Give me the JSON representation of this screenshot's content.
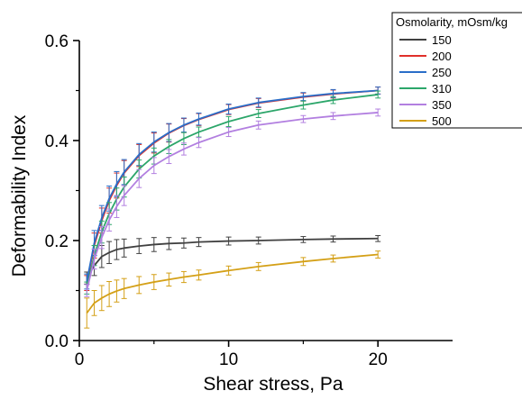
{
  "chart_data": {
    "type": "line",
    "xlabel": "Shear stress, Pa",
    "ylabel": "Deformability Index",
    "xlim": [
      0,
      25
    ],
    "ylim": [
      0,
      0.6
    ],
    "x_ticks": [
      0,
      10,
      20
    ],
    "x_tick_labels": [
      "0",
      "10",
      "20"
    ],
    "y_ticks": [
      0,
      0.2,
      0.4,
      0.6
    ],
    "y_tick_labels": [
      "0.0",
      "0.2",
      "0.4",
      "0.6"
    ],
    "legend_title": "Osmolarity, mOsm/kg",
    "legend_position": "top-right",
    "x": [
      0.5,
      1,
      1.5,
      2,
      2.5,
      3,
      4,
      5,
      6,
      7,
      8,
      10,
      12,
      15,
      17,
      20
    ],
    "series": [
      {
        "name": "150",
        "color": "#404040",
        "values": [
          0.125,
          0.15,
          0.168,
          0.176,
          0.182,
          0.185,
          0.189,
          0.192,
          0.194,
          0.195,
          0.197,
          0.199,
          0.2,
          0.202,
          0.203,
          0.204
        ],
        "errors": [
          0.012,
          0.02,
          0.022,
          0.022,
          0.02,
          0.018,
          0.015,
          0.014,
          0.012,
          0.01,
          0.009,
          0.008,
          0.007,
          0.006,
          0.006,
          0.006
        ]
      },
      {
        "name": "200",
        "color": "#e0302a",
        "values": [
          0.115,
          0.19,
          0.24,
          0.28,
          0.31,
          0.335,
          0.37,
          0.395,
          0.415,
          0.43,
          0.442,
          0.462,
          0.475,
          0.487,
          0.493,
          0.5
        ],
        "errors": [
          0.015,
          0.025,
          0.025,
          0.025,
          0.025,
          0.025,
          0.022,
          0.02,
          0.018,
          0.014,
          0.012,
          0.01,
          0.009,
          0.008,
          0.008,
          0.007
        ]
      },
      {
        "name": "250",
        "color": "#2a6ec8",
        "values": [
          0.118,
          0.195,
          0.245,
          0.284,
          0.313,
          0.337,
          0.372,
          0.397,
          0.416,
          0.431,
          0.443,
          0.463,
          0.476,
          0.488,
          0.494,
          0.5
        ],
        "errors": [
          0.015,
          0.025,
          0.025,
          0.025,
          0.025,
          0.025,
          0.022,
          0.02,
          0.018,
          0.014,
          0.012,
          0.01,
          0.009,
          0.008,
          0.008,
          0.007
        ]
      },
      {
        "name": "310",
        "color": "#2ca66a",
        "values": [
          0.105,
          0.17,
          0.217,
          0.254,
          0.283,
          0.307,
          0.343,
          0.369,
          0.388,
          0.404,
          0.417,
          0.438,
          0.454,
          0.471,
          0.481,
          0.492
        ],
        "errors": [
          0.012,
          0.02,
          0.022,
          0.022,
          0.022,
          0.02,
          0.018,
          0.016,
          0.014,
          0.012,
          0.01,
          0.01,
          0.008,
          0.008,
          0.007,
          0.007
        ]
      },
      {
        "name": "350",
        "color": "#b27fe0",
        "values": [
          0.1,
          0.163,
          0.206,
          0.241,
          0.268,
          0.29,
          0.324,
          0.35,
          0.368,
          0.383,
          0.396,
          0.417,
          0.431,
          0.443,
          0.449,
          0.456
        ],
        "errors": [
          0.012,
          0.02,
          0.022,
          0.022,
          0.022,
          0.02,
          0.018,
          0.016,
          0.014,
          0.012,
          0.01,
          0.009,
          0.008,
          0.007,
          0.007,
          0.007
        ]
      },
      {
        "name": "500",
        "color": "#d4a017",
        "values": [
          0.055,
          0.075,
          0.085,
          0.093,
          0.099,
          0.104,
          0.111,
          0.117,
          0.122,
          0.127,
          0.131,
          0.14,
          0.148,
          0.158,
          0.164,
          0.172
        ],
        "errors": [
          0.03,
          0.025,
          0.025,
          0.025,
          0.022,
          0.02,
          0.017,
          0.015,
          0.013,
          0.011,
          0.01,
          0.009,
          0.008,
          0.008,
          0.007,
          0.007
        ]
      }
    ]
  }
}
